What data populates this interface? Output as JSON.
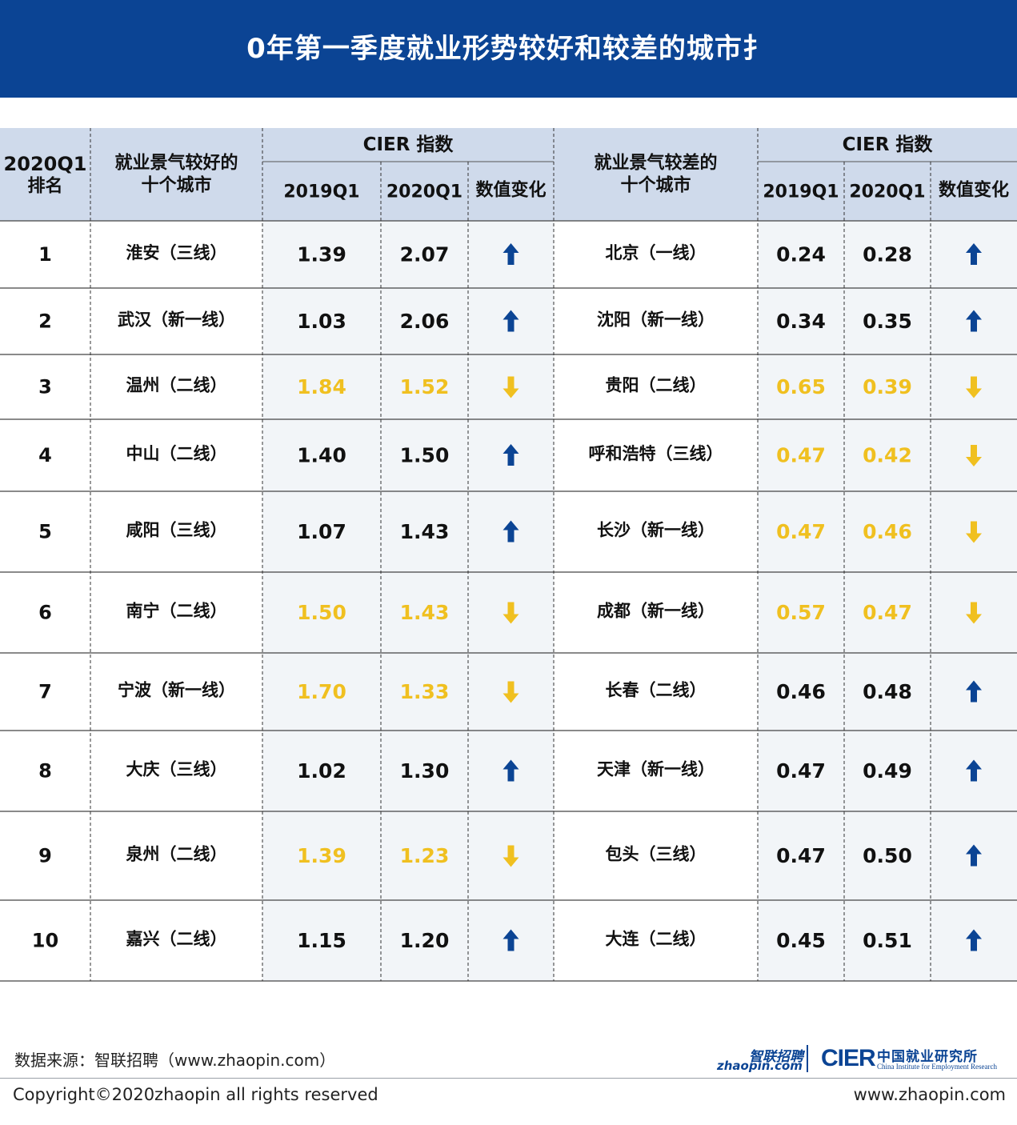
{
  "title": "0年第一季度就业形势较好和较差的城市扌",
  "chart_data": {
    "type": "table",
    "columns": {
      "rank": [
        "2020Q1",
        "排名"
      ],
      "good_city": [
        "就业景气较好的",
        "十个城市"
      ],
      "bad_city": [
        "就业景气较差的",
        "十个城市"
      ],
      "cier_group": "CIER 指数",
      "y2019": "2019Q1",
      "y2020": "2020Q1",
      "change": "数值变化"
    },
    "rows": [
      {
        "rank": "1",
        "good_city": "淮安（三线）",
        "good_2019": "1.39",
        "good_2020": "2.07",
        "good_change": "up",
        "bad_city": "北京（一线）",
        "bad_2019": "0.24",
        "bad_2020": "0.28",
        "bad_change": "up"
      },
      {
        "rank": "2",
        "good_city": "武汉（新一线）",
        "good_2019": "1.03",
        "good_2020": "2.06",
        "good_change": "up",
        "bad_city": "沈阳（新一线）",
        "bad_2019": "0.34",
        "bad_2020": "0.35",
        "bad_change": "up"
      },
      {
        "rank": "3",
        "good_city": "温州（二线）",
        "good_2019": "1.84",
        "good_2020": "1.52",
        "good_change": "down",
        "bad_city": "贵阳（二线）",
        "bad_2019": "0.65",
        "bad_2020": "0.39",
        "bad_change": "down"
      },
      {
        "rank": "4",
        "good_city": "中山（二线）",
        "good_2019": "1.40",
        "good_2020": "1.50",
        "good_change": "up",
        "bad_city": "呼和浩特（三线）",
        "bad_2019": "0.47",
        "bad_2020": "0.42",
        "bad_change": "down"
      },
      {
        "rank": "5",
        "good_city": "咸阳（三线）",
        "good_2019": "1.07",
        "good_2020": "1.43",
        "good_change": "up",
        "bad_city": "长沙（新一线）",
        "bad_2019": "0.47",
        "bad_2020": "0.46",
        "bad_change": "down"
      },
      {
        "rank": "6",
        "good_city": "南宁（二线）",
        "good_2019": "1.50",
        "good_2020": "1.43",
        "good_change": "down",
        "bad_city": "成都（新一线）",
        "bad_2019": "0.57",
        "bad_2020": "0.47",
        "bad_change": "down"
      },
      {
        "rank": "7",
        "good_city": "宁波（新一线）",
        "good_2019": "1.70",
        "good_2020": "1.33",
        "good_change": "down",
        "bad_city": "长春（二线）",
        "bad_2019": "0.46",
        "bad_2020": "0.48",
        "bad_change": "up"
      },
      {
        "rank": "8",
        "good_city": "大庆（三线）",
        "good_2019": "1.02",
        "good_2020": "1.30",
        "good_change": "up",
        "bad_city": "天津（新一线）",
        "bad_2019": "0.47",
        "bad_2020": "0.49",
        "bad_change": "up"
      },
      {
        "rank": "9",
        "good_city": "泉州（二线）",
        "good_2019": "1.39",
        "good_2020": "1.23",
        "good_change": "down",
        "bad_city": "包头（三线）",
        "bad_2019": "0.47",
        "bad_2020": "0.50",
        "bad_change": "up"
      },
      {
        "rank": "10",
        "good_city": "嘉兴（二线）",
        "good_2019": "1.15",
        "good_2020": "1.20",
        "good_change": "up",
        "bad_city": "大连（二线）",
        "bad_2019": "0.45",
        "bad_2020": "0.51",
        "bad_change": "up"
      }
    ]
  },
  "colors": {
    "banner": "#0b4494",
    "header_bg": "#cfdaeb",
    "cier_cell_bg": "#f2f5f8",
    "up": "#0b4494",
    "down": "#f0c020",
    "text": "#111111"
  },
  "footer": {
    "source": "数据来源：智联招聘（www.zhaopin.com）",
    "copyright": "Copyright©2020zhaopin all rights reserved",
    "url": "www.zhaopin.com"
  },
  "logos": {
    "zhaopin_cn": "智联招聘",
    "zhaopin_en": "zhaopin.com",
    "cier_mark": "CIER",
    "cier_cn": "中国就业研究所",
    "cier_en": "China Institute for Employment Research"
  }
}
